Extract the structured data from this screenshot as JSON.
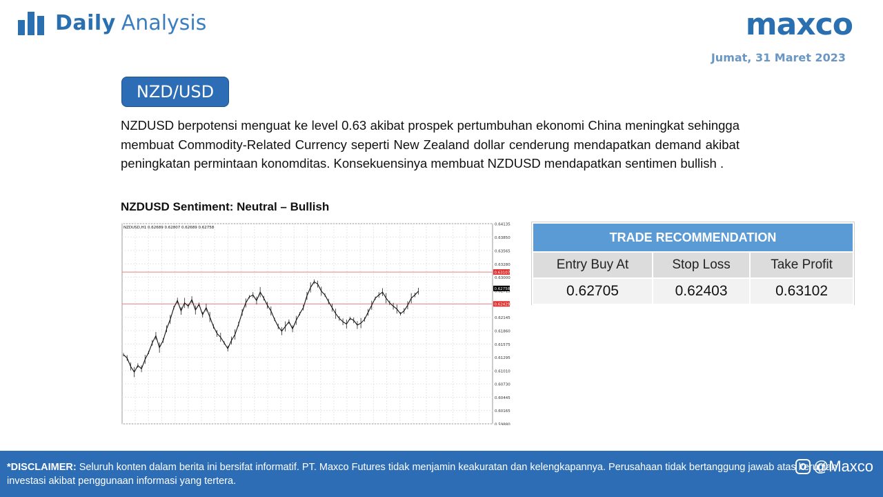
{
  "header": {
    "title_bold": "Daily",
    "title_light": "Analysis",
    "brand": "maxco",
    "date": "Jumat, 31 Maret 2023"
  },
  "pair": "NZD/USD",
  "paragraph": "NZDUSD berpotensi menguat ke level 0.63 akibat prospek pertumbuhan ekonomi China meningkat sehingga membuat Commodity-Related Currency seperti New Zealand dollar cenderung mendapatkan demand akibat peningkatan permintaan konomditas. Konsekuensinya membuat NZDUSD mendapatkan sentimen bullish .",
  "sentiment": "NZDUSD Sentiment: Neutral – Bullish",
  "trade": {
    "title": "TRADE RECOMMENDATION",
    "labels": [
      "Entry Buy At",
      "Stop Loss",
      "Take Profit"
    ],
    "values": [
      "0.62705",
      "0.62403",
      "0.63102"
    ]
  },
  "footer": {
    "disclaimer_label": "*DISCLAIMER:",
    "disclaimer_text": " Seluruh konten dalam berita ini bersifat informatif. PT. Maxco Futures tidak menjamin keakuratan dan kelengkapannya. Perusahaan tidak bertanggung jawab atas kerugian investasi akibat penggunaan informasi yang tertera.",
    "social_handle": "@Maxco"
  },
  "chart_data": {
    "type": "line",
    "title": "NZDUSD,H1  0.62689 0.62807 0.62689 0.62758",
    "ylim": [
      0.5988,
      0.64135
    ],
    "y_ticks": [
      "0.64135",
      "0.63850",
      "0.63565",
      "0.63280",
      "0.63000",
      "0.62715",
      "0.62430",
      "0.62145",
      "0.61860",
      "0.61575",
      "0.61295",
      "0.61010",
      "0.60730",
      "0.60445",
      "0.60165",
      "0.59880"
    ],
    "price_markers": [
      {
        "label": "0.63107",
        "value": 0.63107,
        "color": "#e03030"
      },
      {
        "label": "0.62758",
        "value": 0.62758,
        "color": "#000000"
      },
      {
        "label": "0.62429",
        "value": 0.62429,
        "color": "#e03030"
      }
    ],
    "horizontal_lines": [
      {
        "value": 0.63107,
        "color": "#e88080"
      },
      {
        "value": 0.62429,
        "color": "#e88080"
      }
    ],
    "series": [
      {
        "values": [
          0.6135,
          0.6128,
          0.611,
          0.6098,
          0.6112,
          0.6105,
          0.6125,
          0.614,
          0.616,
          0.6175,
          0.615,
          0.6165,
          0.619,
          0.621,
          0.6235,
          0.625,
          0.6228,
          0.6245,
          0.6238,
          0.6252,
          0.623,
          0.6242,
          0.622,
          0.6235,
          0.6215,
          0.6195,
          0.618,
          0.6172,
          0.616,
          0.6148,
          0.6165,
          0.6178,
          0.62,
          0.6225,
          0.6245,
          0.6258,
          0.6262,
          0.625,
          0.6268,
          0.6255,
          0.624,
          0.6228,
          0.621,
          0.6195,
          0.6185,
          0.6195,
          0.6205,
          0.619,
          0.6208,
          0.6222,
          0.6235,
          0.626,
          0.6278,
          0.629,
          0.6285,
          0.627,
          0.6262,
          0.6248,
          0.6235,
          0.6222,
          0.6212,
          0.6205,
          0.62,
          0.6212,
          0.6208,
          0.6198,
          0.6202,
          0.621,
          0.6225,
          0.624,
          0.6255,
          0.6262,
          0.6268,
          0.6255,
          0.6245,
          0.6238,
          0.6232,
          0.6222,
          0.6228,
          0.624,
          0.6255,
          0.6262,
          0.627
        ]
      }
    ]
  }
}
